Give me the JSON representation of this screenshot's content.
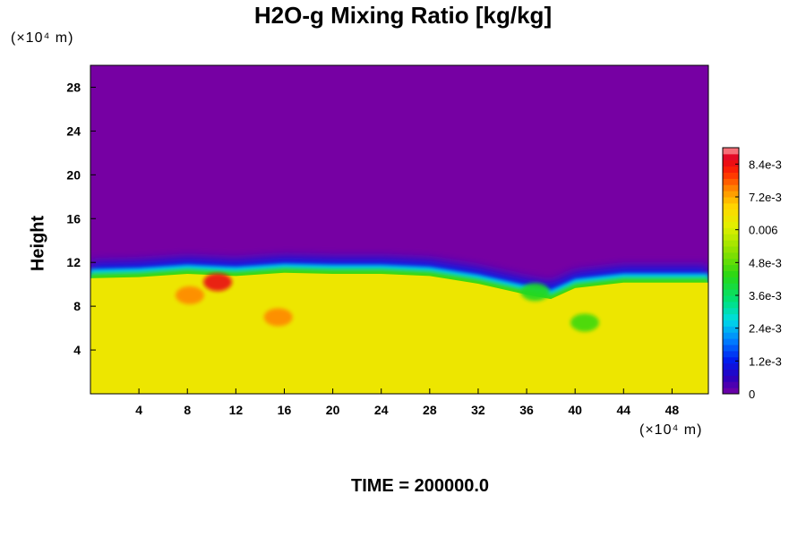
{
  "chart_data": {
    "type": "heatmap",
    "title": "H2O-g Mixing Ratio [kg/kg]",
    "ylabel": "Height",
    "x_unit": "(×10⁴ m)",
    "y_unit": "(×10⁴ m)",
    "xlim": [
      0,
      51
    ],
    "ylim": [
      0,
      30
    ],
    "x_ticks": [
      4,
      8,
      12,
      16,
      20,
      24,
      28,
      32,
      36,
      40,
      44,
      48
    ],
    "y_ticks": [
      4,
      8,
      12,
      16,
      20,
      24,
      28
    ],
    "colorbar": {
      "min": 0,
      "max": 0.009,
      "tick_values": [
        0,
        0.0012,
        0.0024,
        0.0036,
        0.0048,
        0.006,
        0.0072,
        0.0084
      ],
      "tick_labels": [
        "0",
        "1.2e-3",
        "2.4e-3",
        "3.6e-3",
        "4.8e-3",
        "0.006",
        "7.2e-3",
        "8.4e-3"
      ]
    },
    "fields": {
      "upper_layer_value": 0,
      "lower_layer_value": 0.0064,
      "interface_height": [
        [
          0,
          10.8
        ],
        [
          4,
          10.9
        ],
        [
          8,
          11.2
        ],
        [
          12,
          11.0
        ],
        [
          16,
          11.3
        ],
        [
          20,
          11.2
        ],
        [
          24,
          11.2
        ],
        [
          28,
          11.0
        ],
        [
          32,
          10.3
        ],
        [
          36,
          9.3
        ],
        [
          38,
          8.9
        ],
        [
          40,
          9.9
        ],
        [
          44,
          10.4
        ],
        [
          48,
          10.4
        ],
        [
          51,
          10.4
        ]
      ],
      "features": [
        {
          "x": 10.5,
          "y": 10.2,
          "value": 0.0085
        },
        {
          "x": 8.2,
          "y": 9.0,
          "value": 0.0075
        },
        {
          "x": 15.5,
          "y": 7.0,
          "value": 0.0075
        },
        {
          "x": 40.8,
          "y": 6.5,
          "value": 0.0045
        },
        {
          "x": 36.7,
          "y": 9.3,
          "value": 0.0042
        }
      ]
    }
  },
  "footer": {
    "time_label": "TIME =",
    "time_value": "200000.0"
  }
}
